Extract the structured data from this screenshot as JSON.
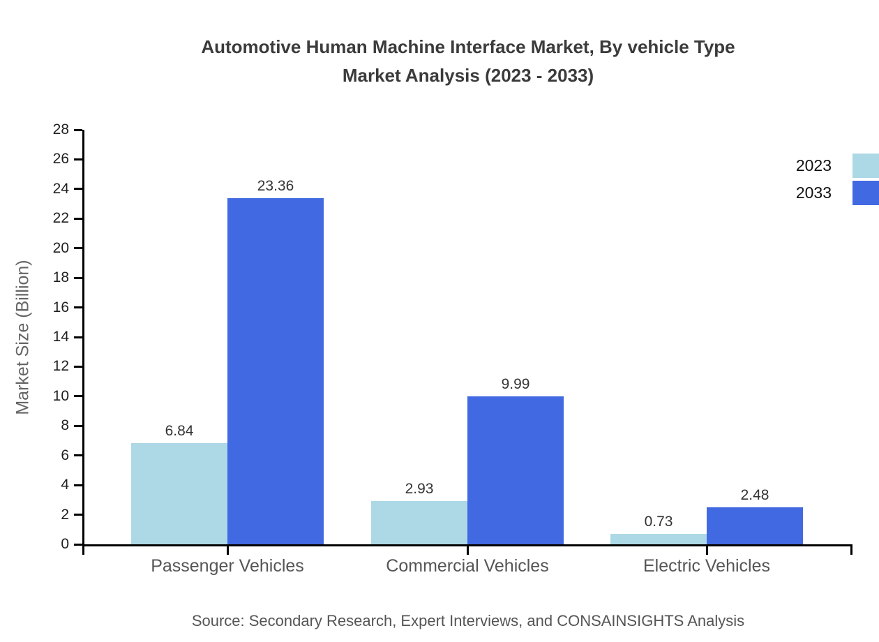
{
  "title": {
    "line1": "Automotive Human Machine Interface Market, By vehicle Type",
    "line2": "Market Analysis (2023 - 2033)"
  },
  "source": "Source: Secondary Research, Expert Interviews, and CONSAINSIGHTS Analysis",
  "chart_data": {
    "type": "bar",
    "title": "Automotive Human Machine Interface Market, By vehicle Type Market Analysis (2023 - 2033)",
    "categories": [
      "Passenger Vehicles",
      "Commercial Vehicles",
      "Electric Vehicles"
    ],
    "series": [
      {
        "name": "2023",
        "color": "#add8e6",
        "values": [
          6.84,
          2.93,
          0.73
        ]
      },
      {
        "name": "2033",
        "color": "#4169e1",
        "values": [
          23.36,
          9.99,
          2.48
        ]
      }
    ],
    "xlabel": "",
    "ylabel": "Market Size (Billion)",
    "ylim": [
      0,
      28
    ],
    "ytick_step": 2,
    "grid": false,
    "legend_position": "top-right",
    "bar_value_labels": true,
    "value_label_decimals": 2
  }
}
